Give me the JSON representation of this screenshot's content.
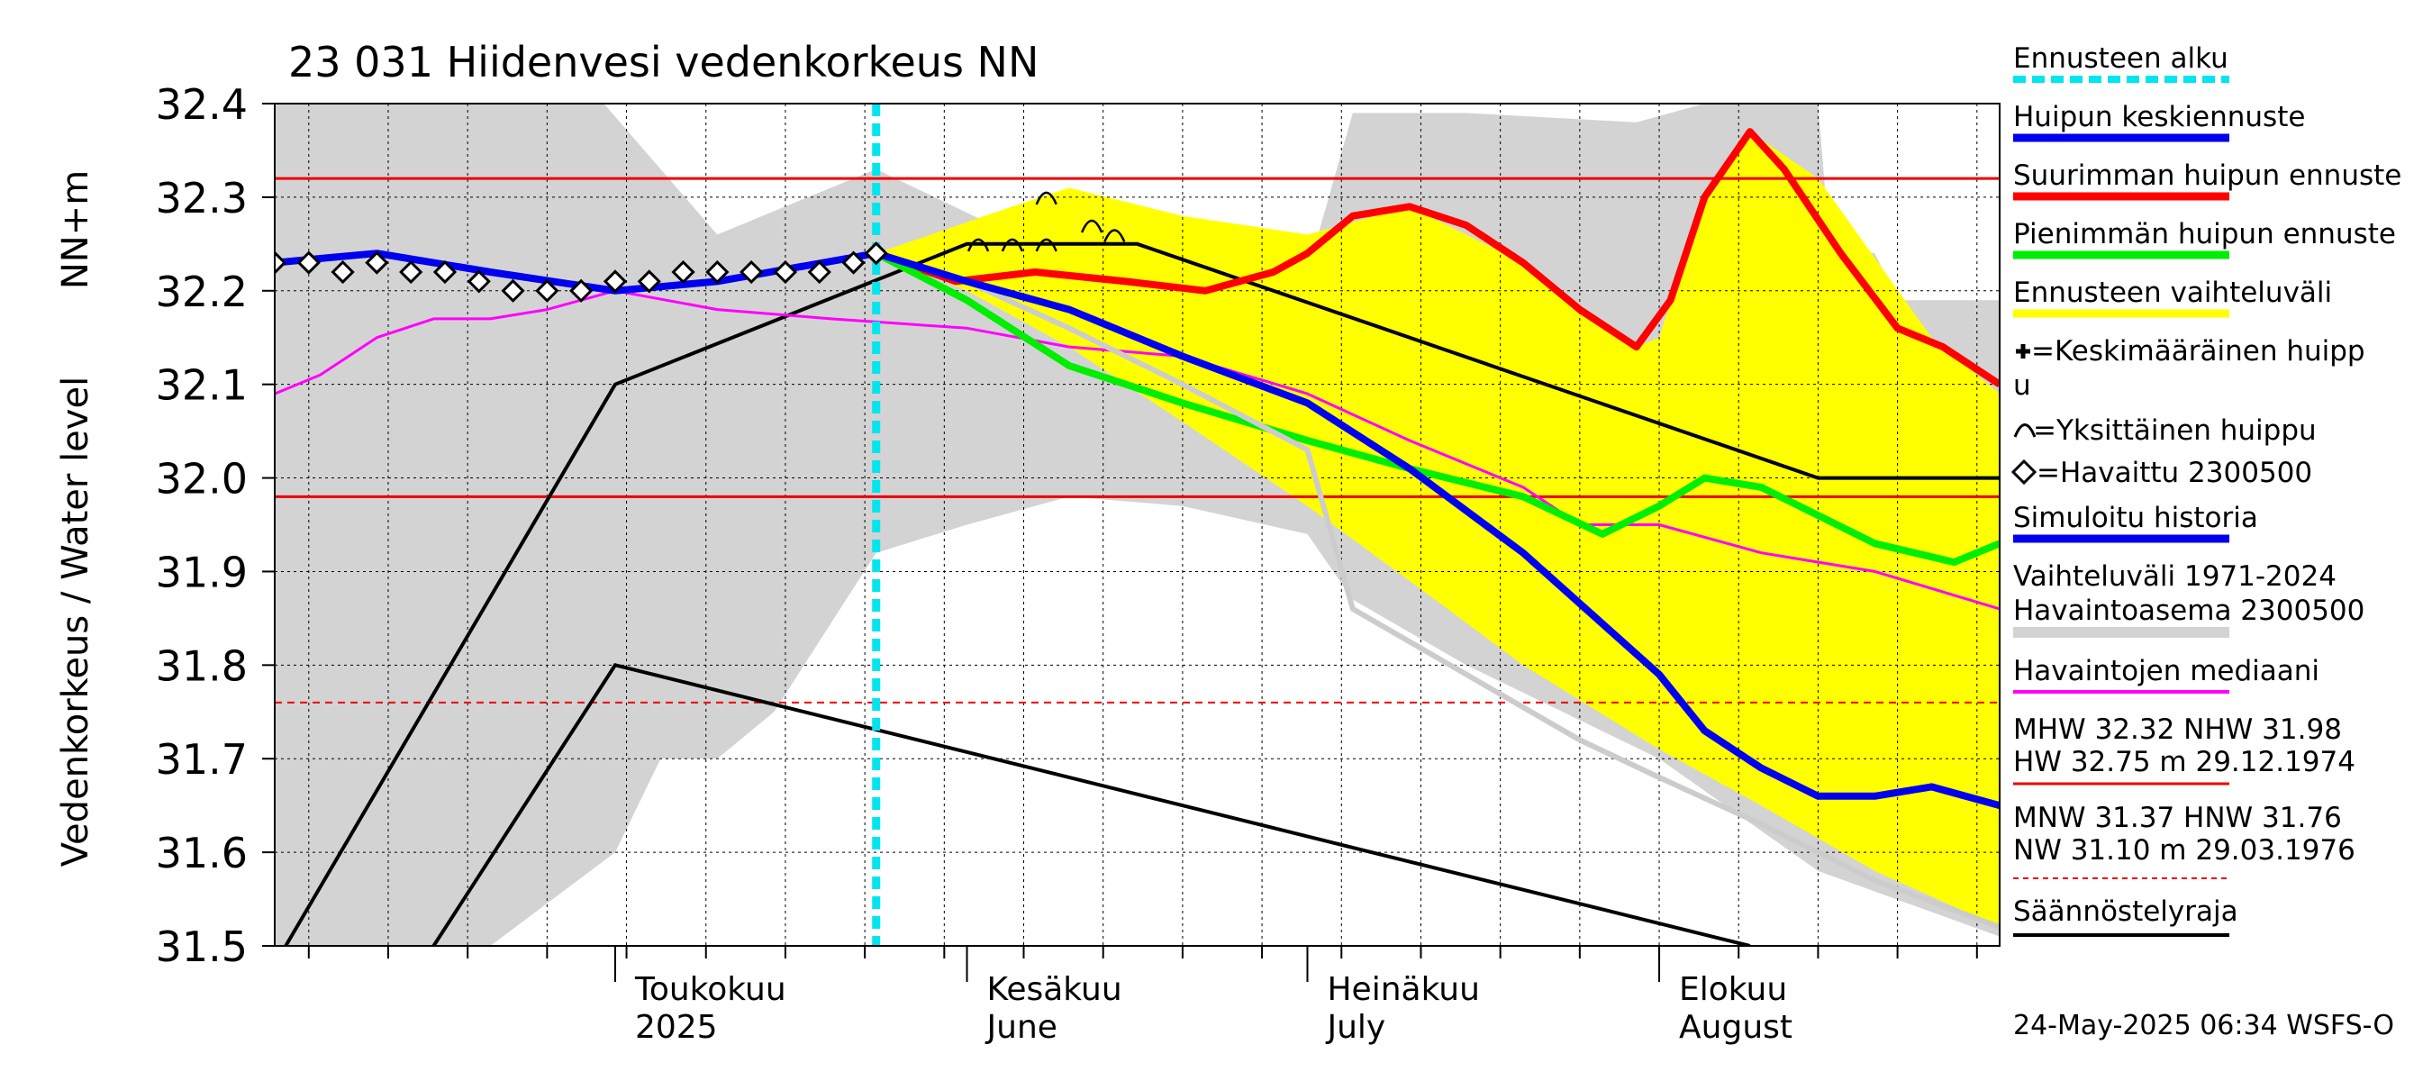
{
  "chart_data": {
    "type": "line",
    "title": "23 031 Hiidenvesi vedenkorkeus NN",
    "ylabel": "Vedenkorkeus / Water level",
    "ylabel_unit": "NN+m",
    "ylim": [
      31.5,
      32.4
    ],
    "y_ticks": [
      "31.5",
      "31.6",
      "31.7",
      "31.8",
      "31.9",
      "32.0",
      "32.1",
      "32.2",
      "32.3",
      "32.4"
    ],
    "xlim": [
      "2025-04-01",
      "2025-08-31"
    ],
    "month_labels": [
      {
        "date": "2025-05-01",
        "line1": "Toukokuu",
        "line2": "2025"
      },
      {
        "date": "2025-06-01",
        "line1": "Kesäkuu",
        "line2": "June"
      },
      {
        "date": "2025-07-01",
        "line1": "Heinäkuu",
        "line2": "July"
      },
      {
        "date": "2025-08-01",
        "line1": "Elokuu",
        "line2": "August"
      }
    ],
    "forecast_start": "2025-05-24",
    "reference_lines": [
      {
        "name": "MHW",
        "value": 32.32,
        "style": "solid"
      },
      {
        "name": "NHW",
        "value": 31.98,
        "style": "solid"
      },
      {
        "name": "HNW",
        "value": 31.76,
        "style": "dashed"
      }
    ],
    "regulation_limit": {
      "upper": [
        [
          "2025-04-01",
          31.48
        ],
        [
          "2025-05-01",
          32.1
        ],
        [
          "2025-06-01",
          32.25
        ],
        [
          "2025-06-16",
          32.25
        ],
        [
          "2025-08-15",
          32.0
        ],
        [
          "2025-08-31",
          32.0
        ]
      ],
      "lower": [
        [
          "2025-04-15",
          31.5
        ],
        [
          "2025-05-01",
          31.8
        ],
        [
          "2025-08-09",
          31.5
        ]
      ]
    },
    "history_band": {
      "name": "Vaihteluväli 1971-2024",
      "upper": [
        [
          "2025-04-01",
          32.4
        ],
        [
          "2025-04-30",
          32.4
        ],
        [
          "2025-05-10",
          32.26
        ],
        [
          "2025-05-24",
          32.33
        ],
        [
          "2025-06-05",
          32.26
        ],
        [
          "2025-06-20",
          32.23
        ],
        [
          "2025-07-01",
          32.22
        ],
        [
          "2025-07-05",
          32.39
        ],
        [
          "2025-07-15",
          32.39
        ],
        [
          "2025-07-30",
          32.38
        ],
        [
          "2025-08-05",
          32.4
        ],
        [
          "2025-08-15",
          32.4
        ],
        [
          "2025-08-16",
          32.25
        ],
        [
          "2025-08-20",
          32.24
        ],
        [
          "2025-08-22",
          32.19
        ],
        [
          "2025-08-31",
          32.19
        ]
      ],
      "lower": [
        [
          "2025-04-01",
          31.5
        ],
        [
          "2025-04-20",
          31.5
        ],
        [
          "2025-05-01",
          31.6
        ],
        [
          "2025-05-05",
          31.7
        ],
        [
          "2025-05-10",
          31.7
        ],
        [
          "2025-05-15",
          31.75
        ],
        [
          "2025-05-24",
          31.92
        ],
        [
          "2025-06-01",
          31.95
        ],
        [
          "2025-06-10",
          31.98
        ],
        [
          "2025-06-20",
          31.97
        ],
        [
          "2025-07-01",
          31.94
        ],
        [
          "2025-07-05",
          31.87
        ],
        [
          "2025-07-15",
          31.8
        ],
        [
          "2025-08-01",
          31.7
        ],
        [
          "2025-08-15",
          31.58
        ],
        [
          "2025-08-31",
          31.51
        ]
      ]
    },
    "forecast_band": {
      "name": "Ennusteen vaihteluväli",
      "upper": [
        [
          "2025-05-24",
          32.24
        ],
        [
          "2025-06-05",
          32.29
        ],
        [
          "2025-06-10",
          32.31
        ],
        [
          "2025-06-20",
          32.28
        ],
        [
          "2025-07-01",
          32.26
        ],
        [
          "2025-07-10",
          32.29
        ],
        [
          "2025-07-20",
          32.23
        ],
        [
          "2025-07-30",
          32.14
        ],
        [
          "2025-08-01",
          32.15
        ],
        [
          "2025-08-05",
          32.3
        ],
        [
          "2025-08-09",
          32.37
        ],
        [
          "2025-08-15",
          32.32
        ],
        [
          "2025-08-25",
          32.15
        ],
        [
          "2025-08-31",
          32.09
        ]
      ],
      "lower": [
        [
          "2025-05-24",
          32.24
        ],
        [
          "2025-06-01",
          32.2
        ],
        [
          "2025-06-10",
          32.14
        ],
        [
          "2025-06-20",
          32.06
        ],
        [
          "2025-07-01",
          31.97
        ],
        [
          "2025-07-10",
          31.89
        ],
        [
          "2025-07-20",
          31.8
        ],
        [
          "2025-08-01",
          31.71
        ],
        [
          "2025-08-10",
          31.65
        ],
        [
          "2025-08-20",
          31.58
        ],
        [
          "2025-08-31",
          31.52
        ]
      ]
    },
    "series": [
      {
        "name": "Havaintojen mediaani",
        "color": "#ff00ff",
        "width": 3,
        "points": [
          [
            "2025-04-01",
            32.09
          ],
          [
            "2025-04-05",
            32.11
          ],
          [
            "2025-04-10",
            32.15
          ],
          [
            "2025-04-15",
            32.17
          ],
          [
            "2025-04-20",
            32.17
          ],
          [
            "2025-04-25",
            32.18
          ],
          [
            "2025-05-01",
            32.2
          ],
          [
            "2025-05-10",
            32.18
          ],
          [
            "2025-05-20",
            32.17
          ],
          [
            "2025-06-01",
            32.16
          ],
          [
            "2025-06-10",
            32.14
          ],
          [
            "2025-06-20",
            32.13
          ],
          [
            "2025-07-01",
            32.09
          ],
          [
            "2025-07-10",
            32.04
          ],
          [
            "2025-07-20",
            31.99
          ],
          [
            "2025-07-25",
            31.95
          ],
          [
            "2025-08-01",
            31.95
          ],
          [
            "2025-08-10",
            31.92
          ],
          [
            "2025-08-20",
            31.9
          ],
          [
            "2025-08-31",
            31.86
          ]
        ]
      },
      {
        "name": "Suurimman huipun ennuste",
        "color": "#ff0000",
        "width": 8,
        "points": [
          [
            "2025-05-24",
            32.24
          ],
          [
            "2025-05-31",
            32.21
          ],
          [
            "2025-06-07",
            32.22
          ],
          [
            "2025-06-15",
            32.21
          ],
          [
            "2025-06-22",
            32.2
          ],
          [
            "2025-06-28",
            32.22
          ],
          [
            "2025-07-01",
            32.24
          ],
          [
            "2025-07-05",
            32.28
          ],
          [
            "2025-07-10",
            32.29
          ],
          [
            "2025-07-15",
            32.27
          ],
          [
            "2025-07-20",
            32.23
          ],
          [
            "2025-07-25",
            32.18
          ],
          [
            "2025-07-30",
            32.14
          ],
          [
            "2025-08-02",
            32.19
          ],
          [
            "2025-08-05",
            32.3
          ],
          [
            "2025-08-09",
            32.37
          ],
          [
            "2025-08-12",
            32.33
          ],
          [
            "2025-08-17",
            32.24
          ],
          [
            "2025-08-22",
            32.16
          ],
          [
            "2025-08-26",
            32.14
          ],
          [
            "2025-08-31",
            32.1
          ]
        ]
      },
      {
        "name": "Pienimmän huipun ennuste",
        "color": "#00ee00",
        "width": 8,
        "points": [
          [
            "2025-05-24",
            32.24
          ],
          [
            "2025-06-01",
            32.19
          ],
          [
            "2025-06-10",
            32.12
          ],
          [
            "2025-06-20",
            32.08
          ],
          [
            "2025-07-01",
            32.04
          ],
          [
            "2025-07-10",
            32.01
          ],
          [
            "2025-07-20",
            31.98
          ],
          [
            "2025-07-27",
            31.94
          ],
          [
            "2025-08-01",
            31.97
          ],
          [
            "2025-08-05",
            32.0
          ],
          [
            "2025-08-10",
            31.99
          ],
          [
            "2025-08-20",
            31.93
          ],
          [
            "2025-08-27",
            31.91
          ],
          [
            "2025-08-31",
            31.93
          ]
        ]
      },
      {
        "name": "Simuloitu historia",
        "color": "#cccccc",
        "width": 6,
        "points": [
          [
            "2025-06-01",
            32.21
          ],
          [
            "2025-06-10",
            32.16
          ],
          [
            "2025-06-20",
            32.1
          ],
          [
            "2025-07-01",
            32.03
          ],
          [
            "2025-07-05",
            31.86
          ],
          [
            "2025-07-15",
            31.79
          ],
          [
            "2025-07-25",
            31.72
          ],
          [
            "2025-08-01",
            31.68
          ],
          [
            "2025-08-10",
            31.63
          ],
          [
            "2025-08-20",
            31.57
          ],
          [
            "2025-08-31",
            31.52
          ]
        ]
      },
      {
        "name": "Huipun keskiennuste",
        "color": "#0000ee",
        "width": 8,
        "points": [
          [
            "2025-04-01",
            32.23
          ],
          [
            "2025-04-10",
            32.24
          ],
          [
            "2025-04-20",
            32.22
          ],
          [
            "2025-05-01",
            32.2
          ],
          [
            "2025-05-10",
            32.21
          ],
          [
            "2025-05-24",
            32.24
          ],
          [
            "2025-06-01",
            32.21
          ],
          [
            "2025-06-10",
            32.18
          ],
          [
            "2025-06-20",
            32.13
          ],
          [
            "2025-07-01",
            32.08
          ],
          [
            "2025-07-10",
            32.01
          ],
          [
            "2025-07-20",
            31.92
          ],
          [
            "2025-08-01",
            31.79
          ],
          [
            "2025-08-05",
            31.73
          ],
          [
            "2025-08-10",
            31.69
          ],
          [
            "2025-08-15",
            31.66
          ],
          [
            "2025-08-20",
            31.66
          ],
          [
            "2025-08-25",
            31.67
          ],
          [
            "2025-08-31",
            31.65
          ]
        ]
      }
    ],
    "observed": {
      "name": "Havaittu 2300500",
      "points": [
        [
          "2025-04-01",
          32.23
        ],
        [
          "2025-04-04",
          32.23
        ],
        [
          "2025-04-07",
          32.22
        ],
        [
          "2025-04-10",
          32.23
        ],
        [
          "2025-04-13",
          32.22
        ],
        [
          "2025-04-16",
          32.22
        ],
        [
          "2025-04-19",
          32.21
        ],
        [
          "2025-04-22",
          32.2
        ],
        [
          "2025-04-25",
          32.2
        ],
        [
          "2025-04-28",
          32.2
        ],
        [
          "2025-05-01",
          32.21
        ],
        [
          "2025-05-04",
          32.21
        ],
        [
          "2025-05-07",
          32.22
        ],
        [
          "2025-05-10",
          32.22
        ],
        [
          "2025-05-13",
          32.22
        ],
        [
          "2025-05-16",
          32.22
        ],
        [
          "2025-05-19",
          32.22
        ],
        [
          "2025-05-22",
          32.23
        ],
        [
          "2025-05-24",
          32.24
        ]
      ]
    },
    "single_peaks": [
      [
        "2025-06-02",
        32.25
      ],
      [
        "2025-06-05",
        32.25
      ],
      [
        "2025-06-08",
        32.25
      ],
      [
        "2025-06-08",
        32.3
      ],
      [
        "2025-06-12",
        32.27
      ],
      [
        "2025-06-14",
        32.26
      ]
    ],
    "legend": {
      "forecast_start": "Ennusteen alku",
      "mean_peak": "Huipun keskiennuste",
      "max_peak": "Suurimman huipun ennuste",
      "min_peak": "Pienimmän huipun ennuste",
      "forecast_range": "Ennusteen vaihteluväli",
      "avg_peak_line1": "=Keskimääräinen huipp",
      "avg_peak_line2": "u",
      "single_peak": "=Yksittäinen huippu",
      "observed": "=Havaittu 2300500",
      "simulated": "Simuloitu historia",
      "range_line1": "Vaihteluväli 1971-2024",
      "range_line2": " Havaintoasema 2300500",
      "median": "Havaintojen mediaani",
      "stats_1a": "MHW  32.32 NHW  31.98",
      "stats_1b": "HW  32.75 m 29.12.1974",
      "stats_2a": "MNW  31.37 HNW  31.76",
      "stats_2b": "NW  31.10 m 29.03.1976",
      "regulation": "Säännöstelyraja"
    },
    "footer": "24-May-2025 06:34 WSFS-O"
  },
  "colors": {
    "history_band": "#d3d3d3",
    "forecast_band": "#ffff00",
    "forecast_start": "#00e5ee",
    "reference": "#ee0000",
    "regulation": "#000000"
  }
}
